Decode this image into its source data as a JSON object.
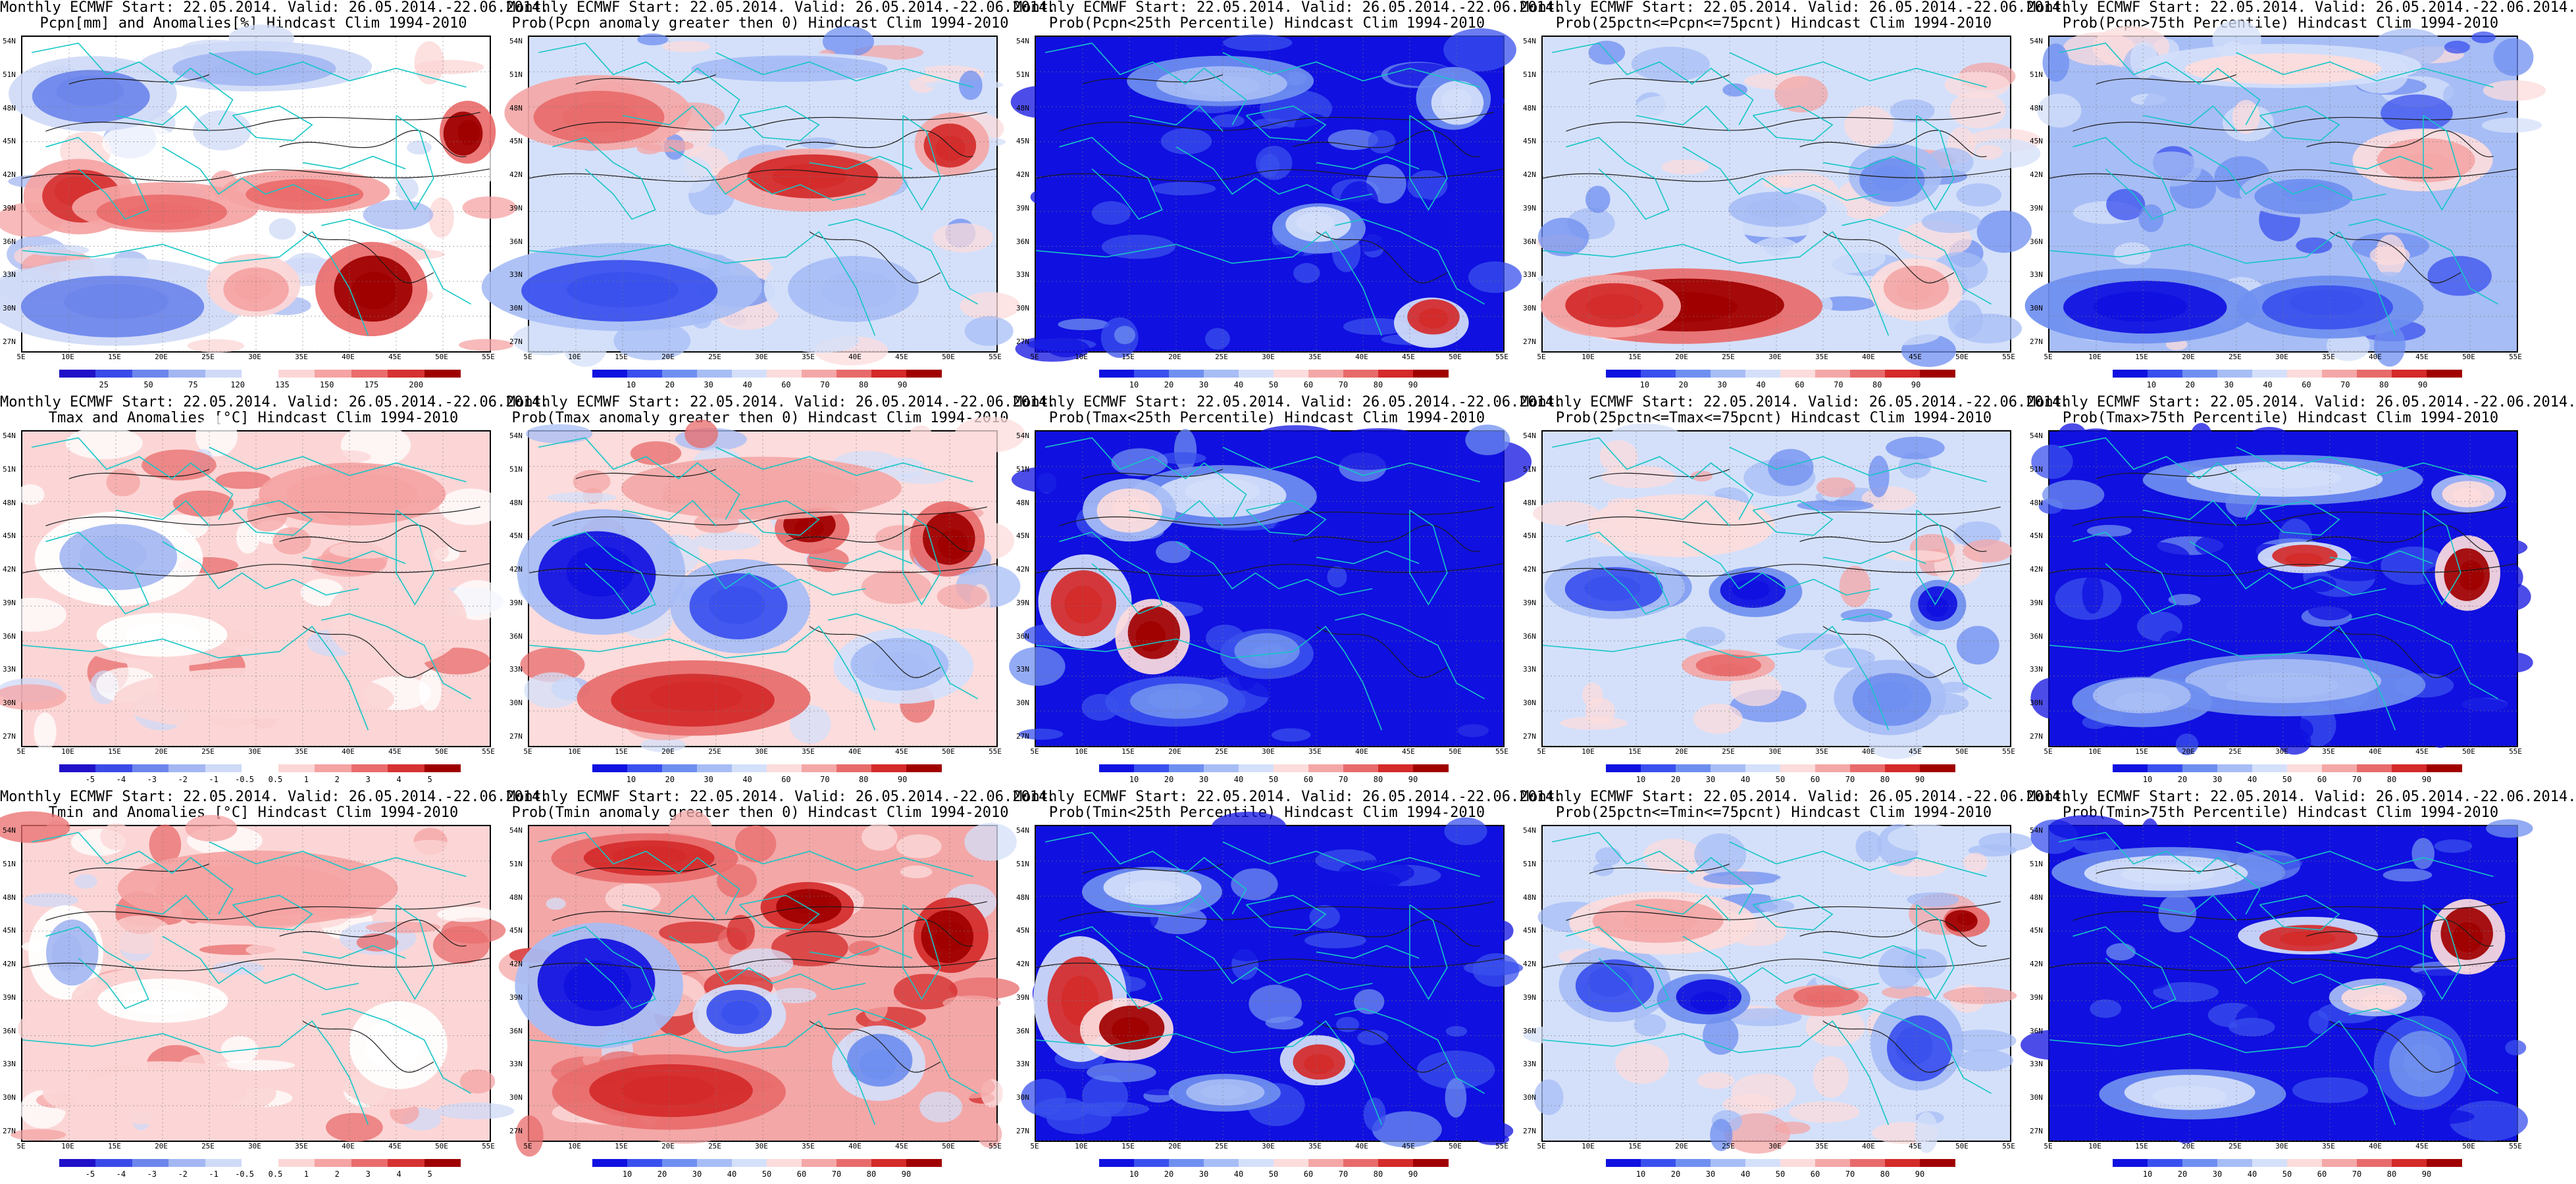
{
  "lat_ticks": [
    "54N",
    "51N",
    "48N",
    "45N",
    "42N",
    "39N",
    "36N",
    "33N",
    "30N",
    "27N"
  ],
  "lon_ticks": [
    "5E",
    "10E",
    "15E",
    "20E",
    "25E",
    "30E",
    "35E",
    "40E",
    "45E",
    "50E",
    "55E"
  ],
  "colors": {
    "coast": "#16c6c6",
    "contour": "#1a1a1a",
    "scale_10": [
      "#1010e0",
      "#3a50ee",
      "#6f8ff0",
      "#a7bdf5",
      "#d4e0fa",
      "#fcdcdc",
      "#f4a7a7",
      "#e86b6b",
      "#d42a2a",
      "#a00000"
    ],
    "scale_11": [
      "#2010c8",
      "#3a4ae8",
      "#6d86ec",
      "#a4b7f2",
      "#cfdaf7",
      "#ffffff",
      "#fcd6d6",
      "#f5a3a3",
      "#ea6c6c",
      "#d63232",
      "#9e0000"
    ]
  },
  "panels": [
    {
      "title_line1": "Monthly ECMWF Start: 22.05.2014. Valid: 26.05.2014.-22.06.2014.",
      "title_line2": "Pcpn[mm] and Anomalies[%] Hindcast Clim 1994-2010",
      "colorbar_ticks": [
        "25",
        "50",
        "75",
        "120",
        "135",
        "150",
        "175",
        "200"
      ],
      "field": "pcpn_anom",
      "scale": "scale_11"
    },
    {
      "title_line1": "Monthly ECMWF Start: 22.05.2014. Valid: 26.05.2014.-22.06.2014.",
      "title_line2": "Prob(Pcpn anomaly greater then 0) Hindcast Clim 1994-2010",
      "colorbar_ticks": [
        "10",
        "20",
        "30",
        "40",
        "60",
        "70",
        "80",
        "90"
      ],
      "field": "pcpn_pos",
      "scale": "scale_10"
    },
    {
      "title_line1": "Monthly ECMWF Start: 22.05.2014. Valid: 26.05.2014.-22.06.2014.",
      "title_line2": "Prob(Pcpn<25th Percentile) Hindcast Clim 1994-2010",
      "colorbar_ticks": [
        "10",
        "20",
        "30",
        "40",
        "50",
        "60",
        "70",
        "80",
        "90"
      ],
      "field": "pcpn_low",
      "scale": "scale_10"
    },
    {
      "title_line1": "Monthly ECMWF Start: 22.05.2014. Valid: 26.05.2014.-22.06.2014.",
      "title_line2": "Prob(25pctn<=Pcpn<=75pcnt) Hindcast Clim 1994-2010",
      "colorbar_ticks": [
        "10",
        "20",
        "30",
        "40",
        "60",
        "70",
        "80",
        "90"
      ],
      "field": "pcpn_mid",
      "scale": "scale_10"
    },
    {
      "title_line1": "Monthly ECMWF Start: 22.05.2014. Valid: 26.05.2014.-22.06.2014.",
      "title_line2": "Prob(Pcpn>75th Percentile) Hindcast Clim 1994-2010",
      "colorbar_ticks": [
        "10",
        "20",
        "30",
        "40",
        "60",
        "70",
        "80",
        "90"
      ],
      "field": "pcpn_high",
      "scale": "scale_10"
    },
    {
      "title_line1": "Monthly ECMWF Start: 22.05.2014. Valid: 26.05.2014.-22.06.2014.",
      "title_line2": "Tmax and Anomalies [°C] Hindcast Clim 1994-2010",
      "colorbar_ticks": [
        "-5",
        "-4",
        "-3",
        "-2",
        "-1",
        "-0.5",
        "0.5",
        "1",
        "2",
        "3",
        "4",
        "5"
      ],
      "field": "tmax_anom",
      "scale": "scale_11"
    },
    {
      "title_line1": "Monthly ECMWF Start: 22.05.2014. Valid: 26.05.2014.-22.06.2014.",
      "title_line2": "Prob(Tmax anomaly greater then 0) Hindcast Clim 1994-2010",
      "colorbar_ticks": [
        "10",
        "20",
        "30",
        "40",
        "60",
        "70",
        "80",
        "90"
      ],
      "field": "tmax_pos",
      "scale": "scale_10"
    },
    {
      "title_line1": "Monthly ECMWF Start: 22.05.2014. Valid: 26.05.2014.-22.06.2014.",
      "title_line2": "Prob(Tmax<25th Percentile) Hindcast Clim 1994-2010",
      "colorbar_ticks": [
        "10",
        "20",
        "30",
        "40",
        "50",
        "60",
        "70",
        "80",
        "90"
      ],
      "field": "tmax_low",
      "scale": "scale_10"
    },
    {
      "title_line1": "Monthly ECMWF Start: 22.05.2014. Valid: 26.05.2014.-22.06.2014.",
      "title_line2": "Prob(25pctn<=Tmax<=75pcnt) Hindcast Clim 1994-2010",
      "colorbar_ticks": [
        "10",
        "20",
        "30",
        "40",
        "50",
        "60",
        "70",
        "80",
        "90"
      ],
      "field": "tmax_mid",
      "scale": "scale_10"
    },
    {
      "title_line1": "Monthly ECMWF Start: 22.05.2014. Valid: 26.05.2014.-22.06.2014.",
      "title_line2": "Prob(Tmax>75th Percentile) Hindcast Clim 1994-2010",
      "colorbar_ticks": [
        "10",
        "20",
        "30",
        "40",
        "50",
        "60",
        "70",
        "80",
        "90"
      ],
      "field": "tmax_high",
      "scale": "scale_10"
    },
    {
      "title_line1": "Monthly ECMWF Start: 22.05.2014. Valid: 26.05.2014.-22.06.2014.",
      "title_line2": "Tmin and Anomalies [°C] Hindcast Clim 1994-2010",
      "colorbar_ticks": [
        "-5",
        "-4",
        "-3",
        "-2",
        "-1",
        "-0.5",
        "0.5",
        "1",
        "2",
        "3",
        "4",
        "5"
      ],
      "field": "tmin_anom",
      "scale": "scale_11"
    },
    {
      "title_line1": "Monthly ECMWF Start: 22.05.2014. Valid: 26.05.2014.-22.06.2014.",
      "title_line2": "Prob(Tmin anomaly greater then 0) Hindcast Clim 1994-2010",
      "colorbar_ticks": [
        "10",
        "20",
        "30",
        "40",
        "50",
        "60",
        "70",
        "80",
        "90"
      ],
      "field": "tmin_pos",
      "scale": "scale_10"
    },
    {
      "title_line1": "Monthly ECMWF Start: 22.05.2014. Valid: 26.05.2014.-22.06.2014.",
      "title_line2": "Prob(Tmin<25th Percentile) Hindcast Clim 1994-2010",
      "colorbar_ticks": [
        "10",
        "20",
        "30",
        "40",
        "50",
        "60",
        "70",
        "80",
        "90"
      ],
      "field": "tmin_low",
      "scale": "scale_10"
    },
    {
      "title_line1": "Monthly ECMWF Start: 22.05.2014. Valid: 26.05.2014.-22.06.2014.",
      "title_line2": "Prob(25pctn<=Tmin<=75pcnt) Hindcast Clim 1994-2010",
      "colorbar_ticks": [
        "10",
        "20",
        "30",
        "40",
        "50",
        "60",
        "70",
        "80",
        "90"
      ],
      "field": "tmin_mid",
      "scale": "scale_10"
    },
    {
      "title_line1": "Monthly ECMWF Start: 22.05.2014. Valid: 26.05.2014.-22.06.2014.",
      "title_line2": "Prob(Tmin>75th Percentile) Hindcast Clim 1994-2010",
      "colorbar_ticks": [
        "10",
        "20",
        "30",
        "40",
        "50",
        "60",
        "70",
        "80",
        "90"
      ],
      "field": "tmin_high",
      "scale": "scale_10"
    }
  ]
}
